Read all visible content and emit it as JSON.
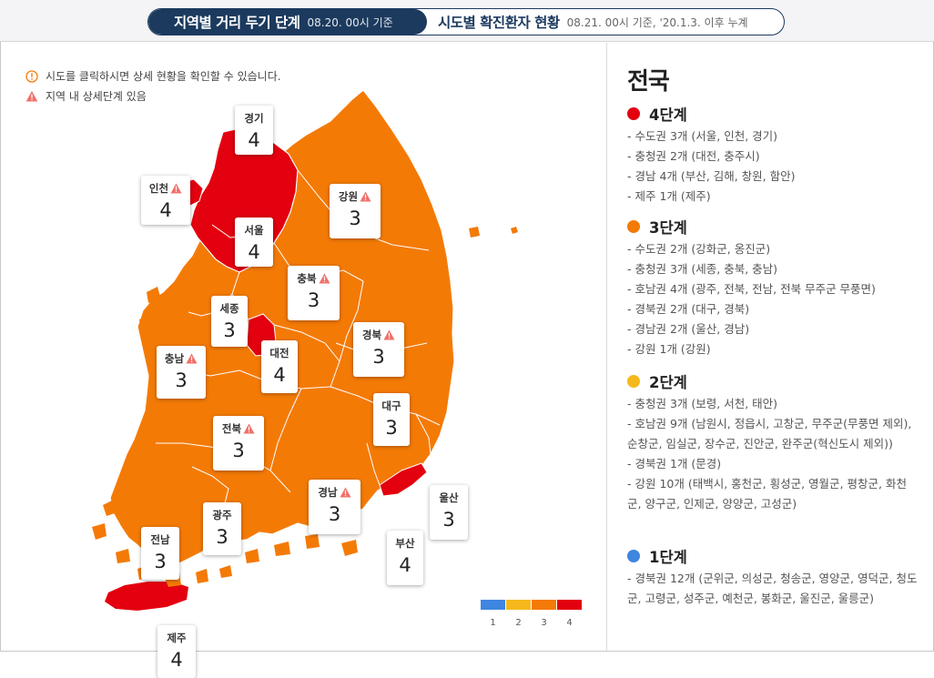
{
  "header": {
    "tab_active": {
      "title": "지역별 거리 두기 단계",
      "sub": "08.20. 00시 기준"
    },
    "tab_inactive": {
      "title": "시도별 확진환자 현황",
      "sub": "08.21. 00시 기준, '20.1.3. 이후 누계"
    }
  },
  "notes": {
    "click_hint": "시도를 클릭하시면 상세 현황을 확인할 수 있습니다.",
    "warn_hint": "지역 내 상세단계 있음"
  },
  "colors": {
    "level1": "#3e86e0",
    "level2": "#f5b81c",
    "level3": "#f47a06",
    "level4": "#e3000f",
    "navy": "#1c3a5e"
  },
  "regions": [
    {
      "name": "경기",
      "value": "4",
      "warn": false
    },
    {
      "name": "인천",
      "value": "4",
      "warn": true
    },
    {
      "name": "서울",
      "value": "4",
      "warn": false
    },
    {
      "name": "강원",
      "value": "3",
      "warn": true
    },
    {
      "name": "충북",
      "value": "3",
      "warn": true
    },
    {
      "name": "세종",
      "value": "3",
      "warn": false
    },
    {
      "name": "충남",
      "value": "3",
      "warn": true
    },
    {
      "name": "대전",
      "value": "4",
      "warn": false
    },
    {
      "name": "경북",
      "value": "3",
      "warn": true
    },
    {
      "name": "대구",
      "value": "3",
      "warn": false
    },
    {
      "name": "전북",
      "value": "3",
      "warn": true
    },
    {
      "name": "경남",
      "value": "3",
      "warn": true
    },
    {
      "name": "울산",
      "value": "3",
      "warn": false
    },
    {
      "name": "광주",
      "value": "3",
      "warn": false
    },
    {
      "name": "전남",
      "value": "3",
      "warn": false
    },
    {
      "name": "부산",
      "value": "4",
      "warn": false
    },
    {
      "name": "제주",
      "value": "4",
      "warn": false
    }
  ],
  "legend": [
    "1",
    "2",
    "3",
    "4"
  ],
  "panel": {
    "title": "전국",
    "levels": [
      {
        "label": "4단계",
        "color": "#e3000f",
        "items": [
          "- 수도권 3개 (서울, 인천, 경기)",
          "- 충청권 2개 (대전, 충주시)",
          "- 경남 4개 (부산, 김해, 창원, 함안)",
          "- 제주 1개 (제주)"
        ]
      },
      {
        "label": "3단계",
        "color": "#f47a06",
        "items": [
          "- 수도권 2개 (강화군, 옹진군)",
          "- 충청권 3개 (세종, 충북, 충남)",
          "- 호남권 4개 (광주, 전북, 전남, 전북 무주군 무풍면)",
          "- 경북권 2개 (대구, 경북)",
          "- 경남권 2개 (울산, 경남)",
          "- 강원 1개 (강원)"
        ]
      },
      {
        "label": "2단계",
        "color": "#f5b81c",
        "items": [
          "- 충청권 3개 (보령, 서천, 태안)",
          "- 호남권 9개 (남원시, 정읍시, 고창군, 무주군(무풍면 제외), 순창군, 임실군, 장수군, 진안군, 완주군(혁신도시 제외))",
          "- 경북권 1개 (문경)",
          "- 강원 10개 (태백시, 홍천군, 횡성군, 영월군, 평창군, 화천군, 양구군, 인제군, 양양군, 고성군)"
        ]
      },
      {
        "label": "1단계",
        "color": "#3e86e0",
        "items": [
          "- 경북권 12개 (군위군, 의성군, 청송군, 영양군, 영덕군, 청도군, 고령군, 성주군, 예천군, 봉화군, 울진군, 울릉군)"
        ]
      }
    ]
  }
}
